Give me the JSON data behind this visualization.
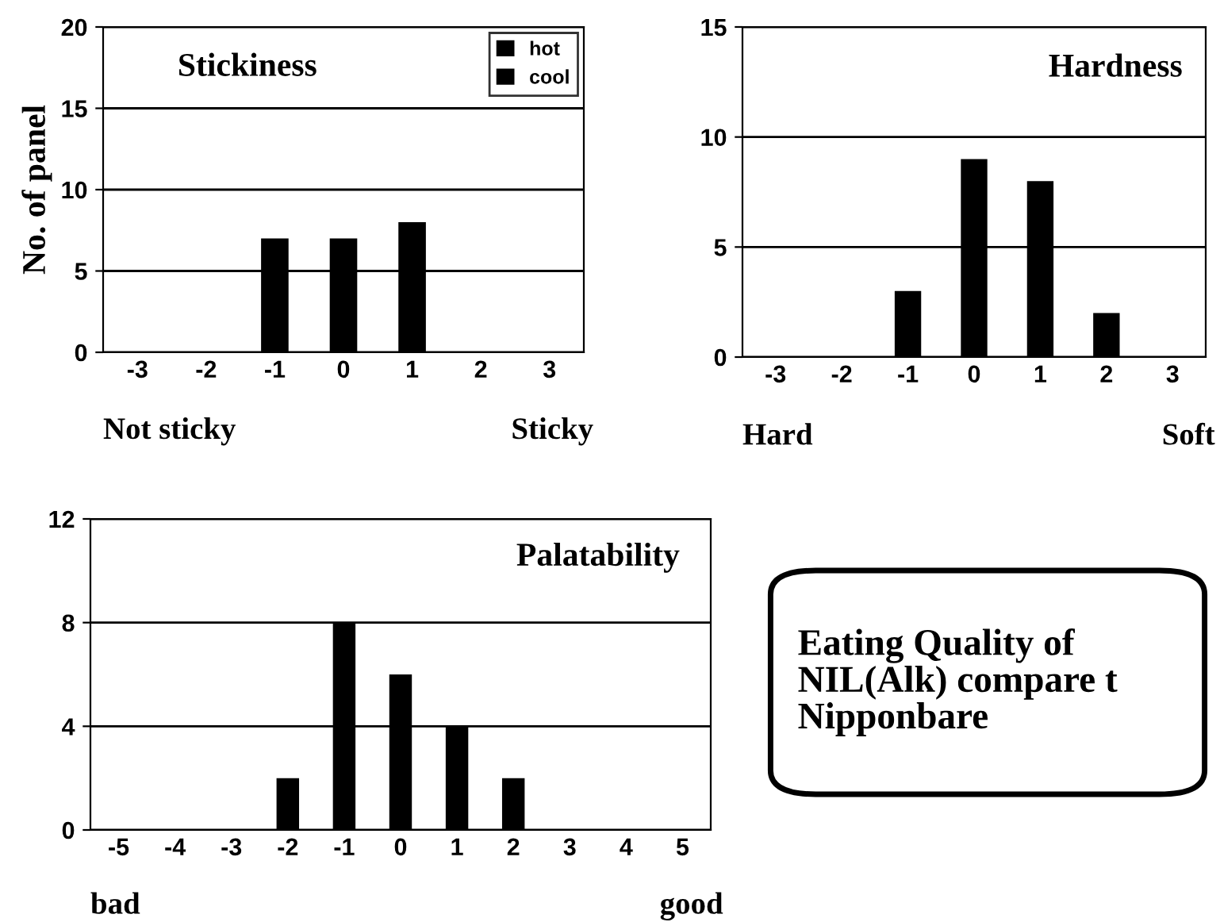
{
  "chart_data": [
    {
      "type": "bar",
      "title": "Stickiness",
      "ylabel": "No. of panel",
      "categories": [
        "-3",
        "-2",
        "-1",
        "0",
        "1",
        "2",
        "3"
      ],
      "series": [
        {
          "name": "hot",
          "color": "#000000",
          "values": [
            0,
            0,
            7,
            7,
            8,
            0,
            0
          ]
        },
        {
          "name": "cool",
          "color": "#000000",
          "values": [
            null,
            null,
            null,
            null,
            null,
            null,
            null
          ]
        }
      ],
      "ylim": [
        0,
        20
      ],
      "yticks": [
        0,
        5,
        10,
        15,
        20
      ],
      "grid": "y",
      "legend": "top right",
      "annotations": [
        "Not sticky",
        "Sticky"
      ]
    },
    {
      "type": "bar",
      "title": "Hardness",
      "categories": [
        "-3",
        "-2",
        "-1",
        "0",
        "1",
        "2",
        "3"
      ],
      "series": [
        {
          "color": "#000000",
          "values": [
            0,
            0,
            3,
            9,
            8,
            2,
            0
          ]
        }
      ],
      "ylim": [
        0,
        15
      ],
      "yticks": [
        0,
        5,
        10,
        15
      ],
      "grid": "y",
      "annotations": [
        "Hard",
        "Soft"
      ]
    },
    {
      "type": "bar",
      "title": "Palatability",
      "categories": [
        "-5",
        "-4",
        "-3",
        "-2",
        "-1",
        "0",
        "1",
        "2",
        "3",
        "4",
        "5"
      ],
      "series": [
        {
          "color": "#000000",
          "values": [
            0,
            0,
            0,
            2,
            8,
            6,
            4,
            2,
            0,
            0,
            0
          ]
        }
      ],
      "ylim": [
        0,
        12
      ],
      "yticks": [
        0,
        4,
        8,
        12
      ],
      "grid": "y",
      "annotations": [
        "bad",
        "good"
      ]
    },
    {
      "type": "other",
      "annotations": [
        "Eating Quality of",
        "NIL(Alk) compare t",
        "Nipponbare"
      ]
    }
  ]
}
